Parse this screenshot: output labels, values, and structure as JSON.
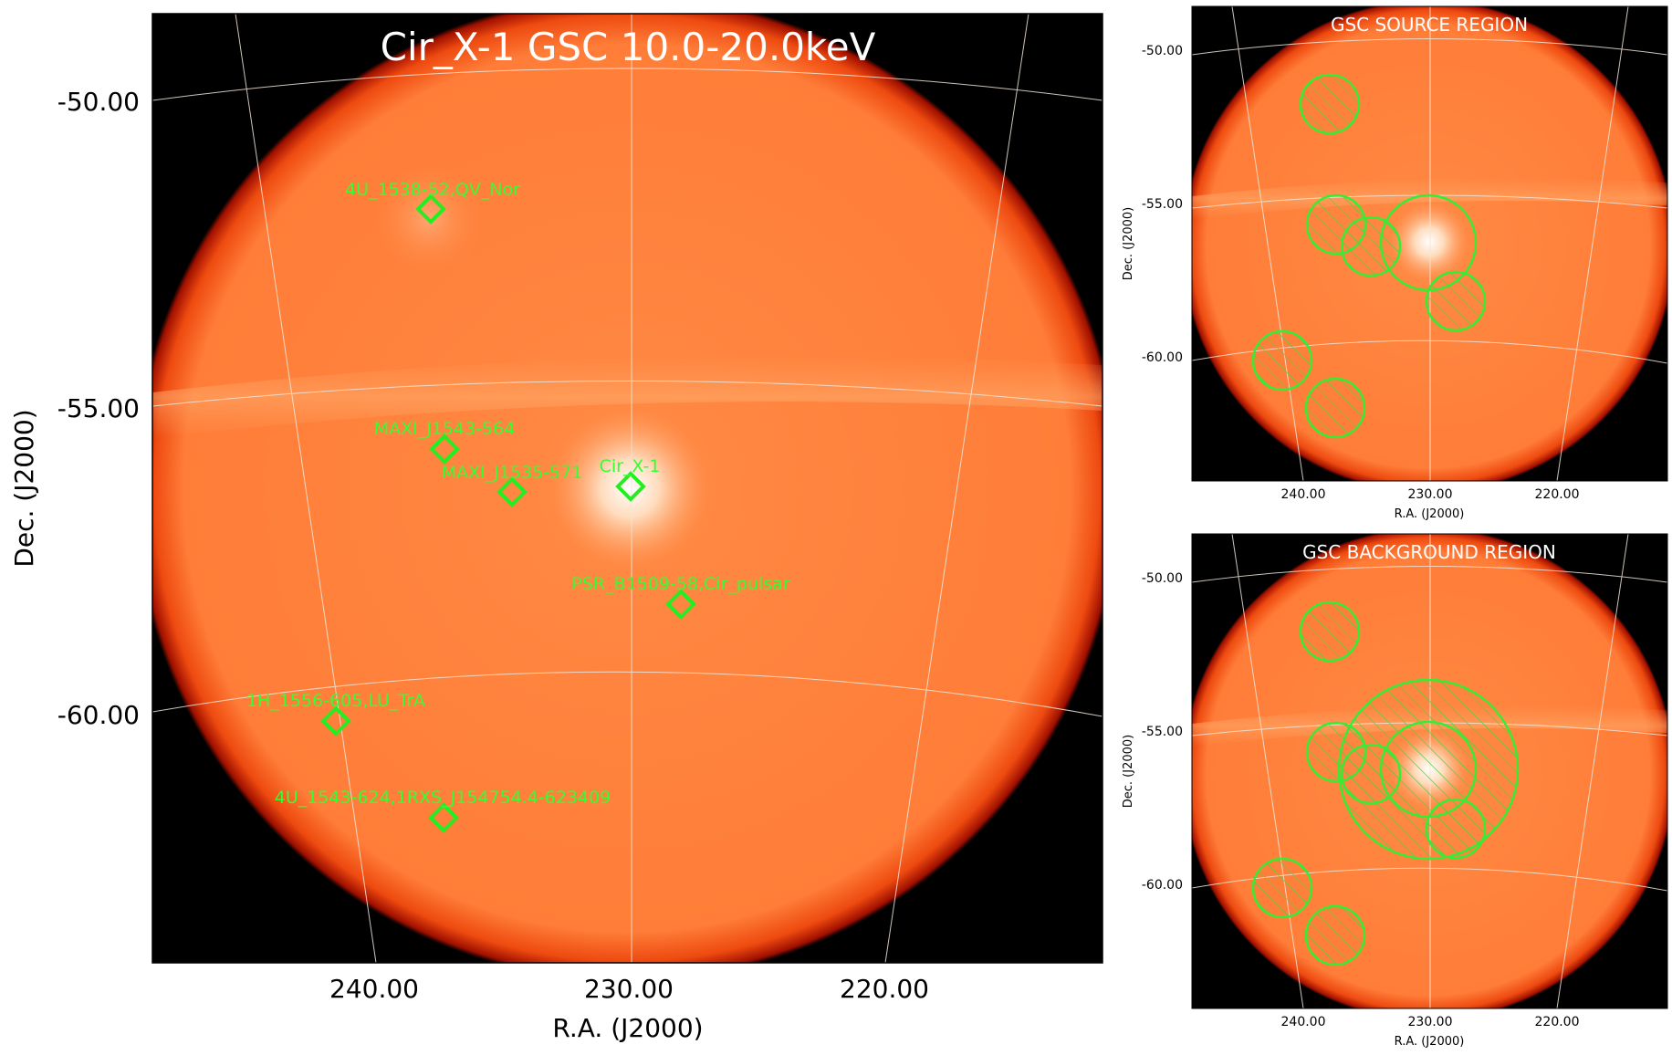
{
  "main": {
    "title": "Cir_X-1 GSC 10.0-20.0keV",
    "xlabel": "R.A. (J2000)",
    "ylabel": "Dec. (J2000)",
    "yticks": [
      "-50.00",
      "-55.00",
      "-60.00"
    ],
    "xticks": [
      "240.00",
      "230.00",
      "220.00"
    ],
    "sources": [
      "4U_1538-52,QV_Nor",
      "MAXI_J1543-564",
      "MAXI_J1535-571",
      "Cir_X-1",
      "PSR_B1509-58,Cir_pulsar",
      "1H_1556-605,LU_TrA",
      "4U_1543-624,1RXS_J154754.4-623409"
    ]
  },
  "source_panel": {
    "title": "GSC SOURCE REGION",
    "xlabel": "R.A. (J2000)",
    "ylabel": "Dec. (J2000)",
    "yticks": [
      "-50.00",
      "-55.00",
      "-60.00"
    ],
    "xticks": [
      "240.00",
      "230.00",
      "220.00"
    ]
  },
  "background_panel": {
    "title": "GSC BACKGROUND REGION",
    "xlabel": "R.A. (J2000)",
    "ylabel": "Dec. (J2000)",
    "yticks": [
      "-50.00",
      "-55.00",
      "-60.00"
    ],
    "xticks": [
      "240.00",
      "230.00",
      "220.00"
    ]
  },
  "colors": {
    "marker": "#22ee22",
    "label": "#33ff33",
    "disk": "#ff7a33",
    "edge": "#000000",
    "grid": "#f0e0d0"
  }
}
